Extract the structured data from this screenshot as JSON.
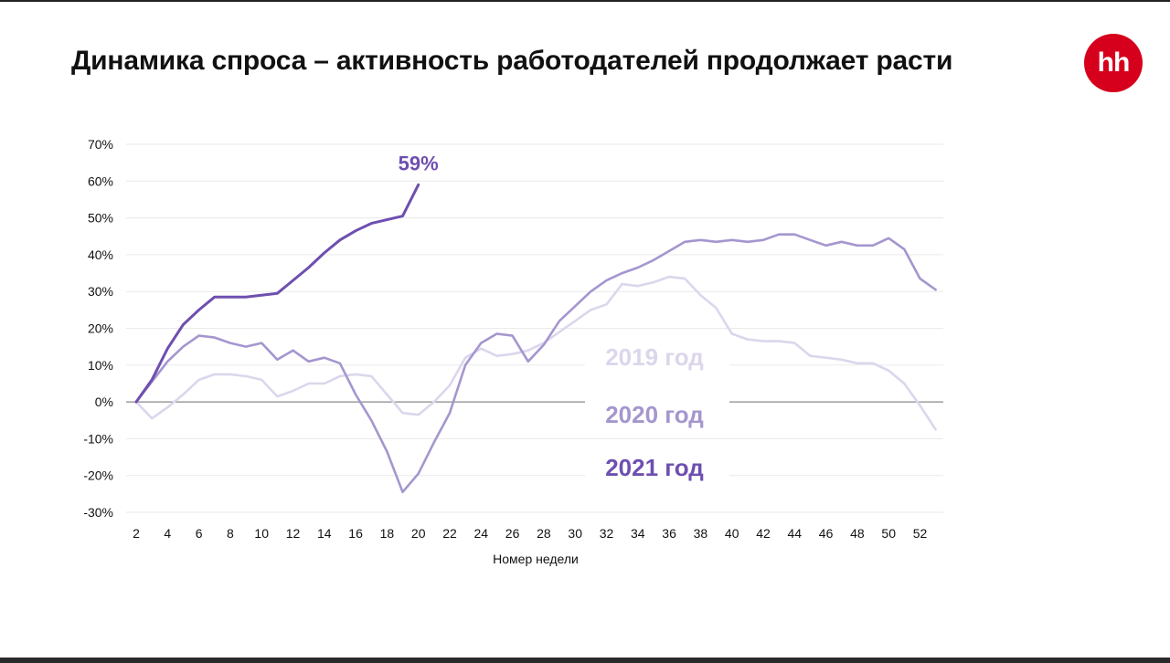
{
  "page": {
    "title": "Динамика спроса – активность работодателей продолжает расти",
    "logo_text": "hh",
    "logo_color": "#d6001c"
  },
  "chart_data": {
    "type": "line",
    "title": "",
    "xlabel": "Номер недели",
    "ylabel": "",
    "xlim": [
      2,
      53
    ],
    "ylim": [
      -30,
      70
    ],
    "y_ticks": [
      -30,
      -20,
      -10,
      0,
      10,
      20,
      30,
      40,
      50,
      60,
      70
    ],
    "y_tick_labels": [
      "-30%",
      "-20%",
      "-10%",
      "0%",
      "10%",
      "20%",
      "30%",
      "40%",
      "50%",
      "60%",
      "70%"
    ],
    "x_ticks": [
      2,
      4,
      6,
      8,
      10,
      12,
      14,
      16,
      18,
      20,
      22,
      24,
      26,
      28,
      30,
      32,
      34,
      36,
      38,
      40,
      42,
      44,
      46,
      48,
      50,
      52
    ],
    "x_tick_labels": [
      "2",
      "4",
      "6",
      "8",
      "10",
      "12",
      "14",
      "16",
      "18",
      "20",
      "22",
      "24",
      "26",
      "28",
      "30",
      "32",
      "34",
      "36",
      "38",
      "40",
      "42",
      "44",
      "46",
      "48",
      "50",
      "52"
    ],
    "grid": true,
    "legend_position": "right-center",
    "series": [
      {
        "name": "2019 год",
        "color": "#dcd6ec",
        "x": [
          2,
          3,
          4,
          5,
          6,
          7,
          8,
          9,
          10,
          11,
          12,
          13,
          14,
          15,
          16,
          17,
          18,
          19,
          20,
          21,
          22,
          23,
          24,
          25,
          26,
          27,
          28,
          29,
          30,
          31,
          32,
          33,
          34,
          35,
          36,
          37,
          38,
          39,
          40,
          41,
          42,
          43,
          44,
          45,
          46,
          47,
          48,
          49,
          50,
          51,
          52,
          53
        ],
        "values": [
          0,
          -4.5,
          -1.5,
          2,
          6,
          7.5,
          7.5,
          7,
          6,
          1.5,
          3,
          5,
          5,
          7,
          7.5,
          7,
          2,
          -3,
          -3.5,
          0,
          4.5,
          12,
          14.5,
          12.5,
          13,
          14,
          16,
          19,
          22,
          25,
          26.5,
          32,
          31.5,
          32.5,
          34,
          33.5,
          29,
          25.5,
          18.5,
          17,
          16.5,
          16.5,
          16,
          12.5,
          12,
          11.5,
          10.5,
          10.5,
          8.5,
          5,
          -1,
          -7.5
        ]
      },
      {
        "name": "2020 год",
        "color": "#a596cf",
        "x": [
          2,
          3,
          4,
          5,
          6,
          7,
          8,
          9,
          10,
          11,
          12,
          13,
          14,
          15,
          16,
          17,
          18,
          19,
          20,
          21,
          22,
          23,
          24,
          25,
          26,
          27,
          28,
          29,
          30,
          31,
          32,
          33,
          34,
          35,
          36,
          37,
          38,
          39,
          40,
          41,
          42,
          43,
          44,
          45,
          46,
          47,
          48,
          49,
          50,
          51,
          52,
          53
        ],
        "values": [
          0,
          5.5,
          11,
          15,
          18,
          17.5,
          16,
          15,
          16,
          11.5,
          14,
          11,
          12,
          10.5,
          2,
          -5,
          -13.5,
          -24.5,
          -19.5,
          -11,
          -3,
          10,
          16,
          18.5,
          18,
          11,
          15.5,
          22,
          26,
          30,
          33,
          35,
          36.5,
          38.5,
          41,
          43.5,
          44,
          43.5,
          44,
          43.5,
          44,
          45.5,
          45.5,
          44,
          42.5,
          43.5,
          42.5,
          42.5,
          44.5,
          41.5,
          33.5,
          30.5
        ]
      },
      {
        "name": "2021 год",
        "color": "#6e4fb0",
        "x": [
          2,
          3,
          4,
          5,
          6,
          7,
          8,
          9,
          10,
          11,
          12,
          13,
          14,
          15,
          16,
          17,
          18,
          19,
          20
        ],
        "values": [
          0,
          6,
          14.5,
          21,
          25,
          28.5,
          28.5,
          28.5,
          29,
          29.5,
          33,
          36.5,
          40.5,
          44,
          46.5,
          48.5,
          49.5,
          50.5,
          59
        ]
      }
    ],
    "annotations": [
      {
        "text": "59%",
        "x": 20,
        "y": 59,
        "color": "#6e4fb0"
      }
    ]
  }
}
